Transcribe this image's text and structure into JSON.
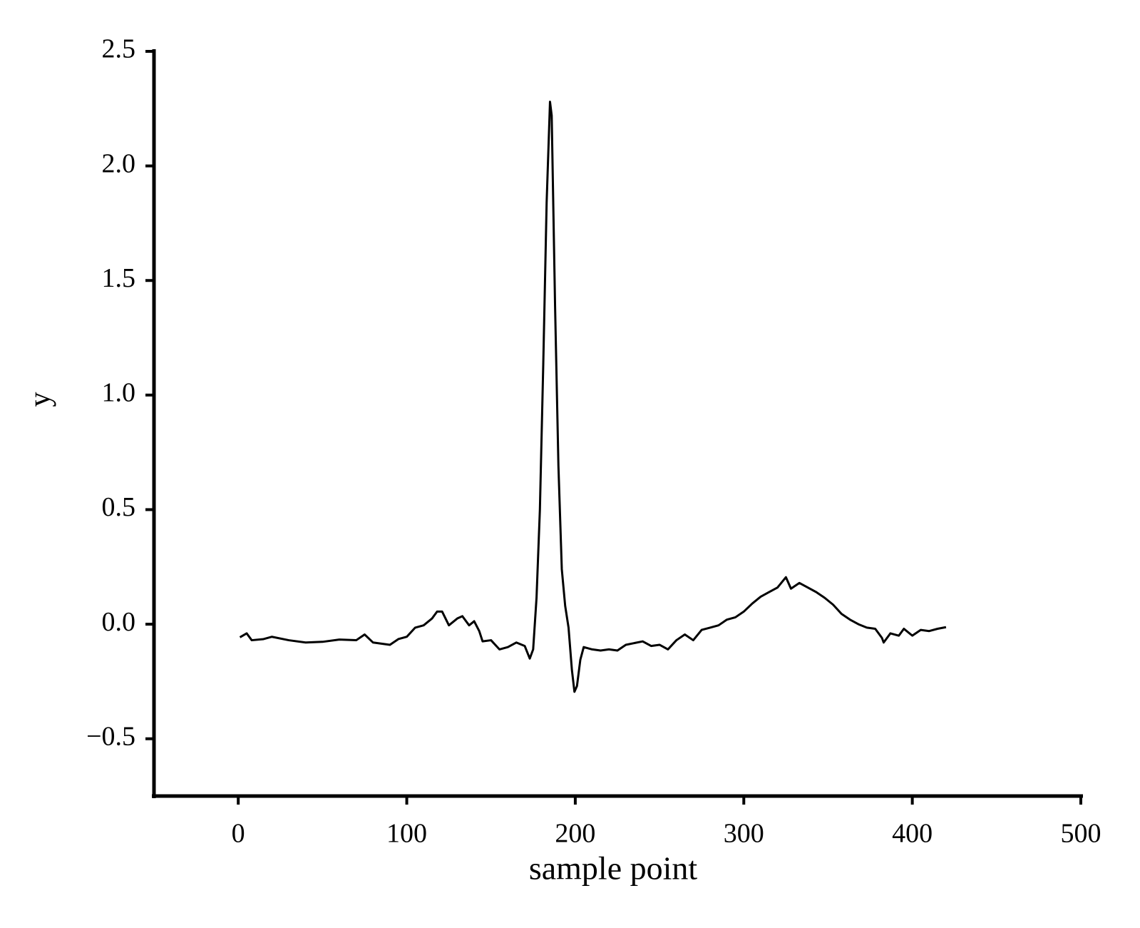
{
  "chart_data": {
    "type": "line",
    "xlabel": "sample point",
    "ylabel": "y",
    "x": [
      1,
      5,
      8,
      15,
      20,
      30,
      40,
      50,
      60,
      70,
      75,
      80,
      90,
      95,
      100,
      105,
      110,
      115,
      118,
      121,
      125,
      130,
      133,
      137,
      140,
      143,
      145,
      150,
      155,
      160,
      165,
      170,
      173,
      175,
      177,
      179,
      181,
      183,
      185,
      186,
      188,
      190,
      192,
      194,
      196,
      198,
      199.5,
      201,
      203,
      205,
      210,
      215,
      220,
      225,
      230,
      240,
      245,
      250,
      255,
      260,
      265,
      270,
      275,
      280,
      285,
      290,
      295,
      300,
      305,
      310,
      315,
      320,
      325,
      328,
      333,
      338,
      343,
      348,
      353,
      358,
      363,
      368,
      373,
      378,
      382,
      383,
      387,
      392,
      395,
      400,
      405,
      410,
      415,
      420
    ],
    "values": [
      -0.057,
      -0.04,
      -0.07,
      -0.065,
      -0.055,
      -0.07,
      -0.08,
      -0.077,
      -0.067,
      -0.07,
      -0.045,
      -0.08,
      -0.09,
      -0.065,
      -0.055,
      -0.015,
      -0.005,
      0.025,
      0.055,
      0.055,
      -0.005,
      0.025,
      0.035,
      -0.005,
      0.013,
      -0.03,
      -0.075,
      -0.07,
      -0.11,
      -0.1,
      -0.08,
      -0.095,
      -0.15,
      -0.11,
      0.115,
      0.5,
      1.135,
      1.84,
      2.28,
      2.22,
      1.39,
      0.69,
      0.24,
      0.08,
      -0.015,
      -0.2,
      -0.295,
      -0.27,
      -0.155,
      -0.1,
      -0.11,
      -0.115,
      -0.11,
      -0.115,
      -0.09,
      -0.075,
      -0.095,
      -0.09,
      -0.11,
      -0.07,
      -0.045,
      -0.07,
      -0.025,
      -0.015,
      -0.005,
      0.02,
      0.03,
      0.055,
      0.09,
      0.12,
      0.14,
      0.16,
      0.205,
      0.155,
      0.18,
      0.16,
      0.14,
      0.115,
      0.085,
      0.045,
      0.02,
      0,
      -0.015,
      -0.02,
      -0.06,
      -0.08,
      -0.04,
      -0.05,
      -0.02,
      -0.05,
      -0.025,
      -0.03,
      -0.02,
      -0.013
    ],
    "color": "#000000",
    "xlim": [
      -50,
      500
    ],
    "xticks": [
      0,
      100,
      200,
      300,
      400,
      500
    ],
    "ylim": [
      -0.75,
      2.5
    ],
    "yticks": [
      {
        "value": -0.5,
        "label": "−0.5"
      },
      {
        "value": 0,
        "label": "0.0"
      },
      0.5,
      {
        "value": 1,
        "label": "1.0"
      },
      1.5,
      {
        "value": 2,
        "label": "2.0"
      },
      2.5
    ]
  }
}
